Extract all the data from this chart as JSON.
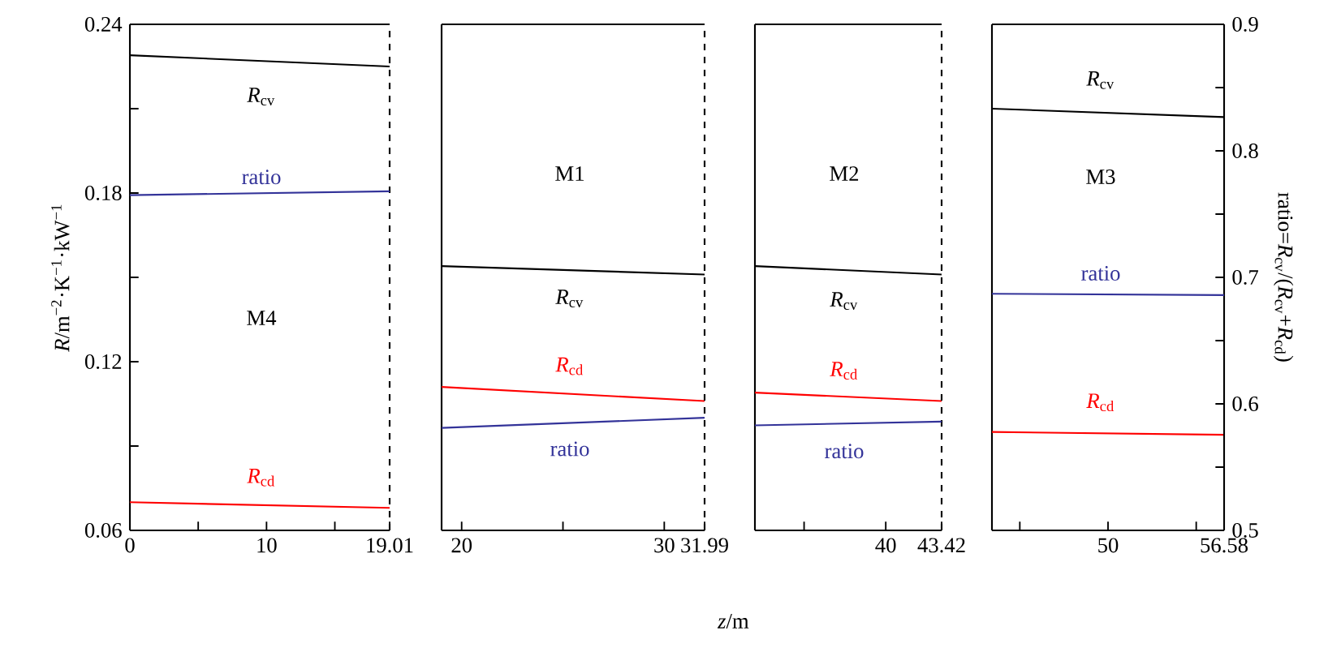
{
  "chart_data": [
    {
      "type": "line",
      "title": "M4",
      "ylabel": "*R*/m$^{−2}$·K$^{−1}$·kW$^{−1}$",
      "x": [
        0,
        19.01
      ],
      "xlim": [
        0,
        19.01
      ],
      "ylim": [
        0.06,
        0.24
      ],
      "y2lim": [
        0.5,
        0.9
      ],
      "marker": "none",
      "xticks": [
        0,
        {
          "value": 5,
          "label": null
        },
        10,
        {
          "value": 15,
          "label": null
        },
        19.01
      ],
      "yticks": [
        0.06,
        {
          "value": 0.09,
          "label": null
        },
        0.12,
        {
          "value": 0.15,
          "label": null
        },
        0.18,
        {
          "value": 0.21,
          "label": null
        },
        0.24
      ],
      "series": [
        {
          "name": "*R*$_{cv}$",
          "color": "#000000",
          "values": [
            0.229,
            0.225
          ]
        },
        {
          "name": "*R*$_{cd}$",
          "color": "#ff0000",
          "values": [
            0.07,
            0.068
          ]
        },
        {
          "name": "ratio",
          "color": "#333399",
          "axis": "y2",
          "values": [
            0.765,
            0.768
          ]
        }
      ]
    },
    {
      "type": "line",
      "title": "M1",
      "xlabel": "*z*/m",
      "x": [
        19.01,
        31.99
      ],
      "xlim": [
        19.01,
        31.99
      ],
      "ylim": [
        0.06,
        0.24
      ],
      "y2lim": [
        0.5,
        0.9
      ],
      "tick_labels": "x",
      "marker": "none",
      "xticks": [
        20,
        {
          "value": 25,
          "label": null
        },
        30,
        31.99
      ],
      "series": [
        {
          "name": "*R*$_{cv}$",
          "color": "#000000",
          "values": [
            0.154,
            0.151
          ]
        },
        {
          "name": "*R*$_{cd}$",
          "color": "#ff0000",
          "values": [
            0.111,
            0.106
          ]
        },
        {
          "name": "ratio",
          "color": "#333399",
          "axis": "y2",
          "values": [
            0.581,
            0.589
          ]
        }
      ]
    },
    {
      "type": "line",
      "title": "M2",
      "x": [
        31.99,
        43.42
      ],
      "xlim": [
        31.99,
        43.42
      ],
      "ylim": [
        0.06,
        0.24
      ],
      "y2lim": [
        0.5,
        0.9
      ],
      "tick_labels": "x",
      "marker": "none",
      "xticks": [
        {
          "value": 35,
          "label": null
        },
        40,
        43.42
      ],
      "series": [
        {
          "name": "*R*$_{cv}$",
          "color": "#000000",
          "values": [
            0.154,
            0.151
          ]
        },
        {
          "name": "*R*$_{cd}$",
          "color": "#ff0000",
          "values": [
            0.109,
            0.106
          ]
        },
        {
          "name": "ratio",
          "color": "#333399",
          "axis": "y2",
          "values": [
            0.583,
            0.586
          ]
        }
      ]
    },
    {
      "type": "line",
      "title": "M3",
      "y2label": "ratio=*R*$_{cv}$/(*R*$_{cv}$+*R*$_{cd}$)",
      "x": [
        43.42,
        56.58
      ],
      "xlim": [
        43.42,
        56.58
      ],
      "ylim": [
        0.06,
        0.24
      ],
      "y2lim": [
        0.5,
        0.9
      ],
      "marker": "none",
      "xticks": [
        {
          "value": 45,
          "label": null
        },
        50,
        {
          "value": 55,
          "label": null
        },
        56.58
      ],
      "y2ticks": [
        0.5,
        {
          "value": 0.55,
          "label": null
        },
        0.6,
        {
          "value": 0.65,
          "label": null
        },
        0.7,
        {
          "value": 0.75,
          "label": null
        },
        0.8,
        {
          "value": 0.85,
          "label": null
        },
        0.9
      ],
      "series": [
        {
          "name": "*R*$_{cv}$",
          "color": "#000000",
          "values": [
            0.21,
            0.207
          ]
        },
        {
          "name": "*R*$_{cd}$",
          "color": "#ff0000",
          "values": [
            0.095,
            0.094
          ]
        },
        {
          "name": "ratio",
          "color": "#333399",
          "axis": "y2",
          "values": [
            0.687,
            0.686
          ]
        }
      ]
    }
  ]
}
